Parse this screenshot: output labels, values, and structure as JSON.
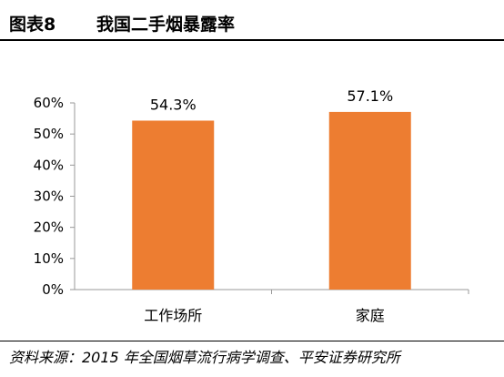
{
  "header": {
    "figure_label": "图表8",
    "title": "我国二手烟暴露率"
  },
  "source": "资料来源：2015 年全国烟草流行病学调查、平安证券研究所",
  "chart_data": {
    "type": "bar",
    "categories": [
      "工作场所",
      "家庭"
    ],
    "values": [
      54.3,
      57.1
    ],
    "data_labels": [
      "54.3%",
      "57.1%"
    ],
    "yticks": [
      "0%",
      "10%",
      "20%",
      "30%",
      "40%",
      "50%",
      "60%"
    ],
    "ylim": [
      0,
      60
    ],
    "grid": false,
    "bar_color": "#ED7D31"
  }
}
